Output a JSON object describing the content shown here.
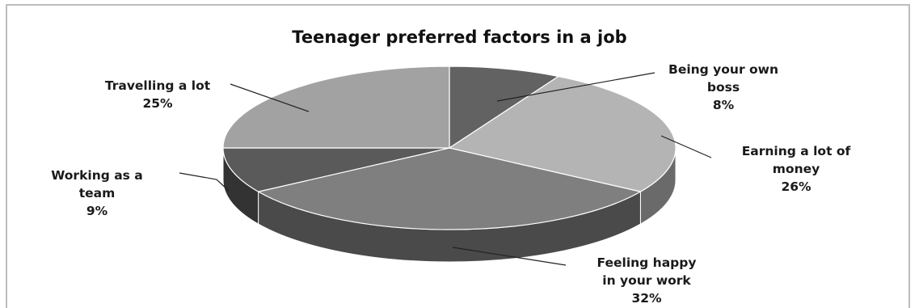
{
  "chart_data": {
    "type": "pie",
    "style": "3d",
    "title": "Teenager preferred factors in a job",
    "slices": [
      {
        "label_lines": [
          "Being your own",
          "boss"
        ],
        "percent_label": "8%",
        "value": 8,
        "color": "#626262",
        "side": "#3a3a3a"
      },
      {
        "label_lines": [
          "Earning a lot of",
          "money"
        ],
        "percent_label": "26%",
        "value": 26,
        "color": "#b4b4b4",
        "side": "#6a6a6a"
      },
      {
        "label_lines": [
          "Feeling happy",
          "in your work"
        ],
        "percent_label": "32%",
        "value": 32,
        "color": "#7f7f7f",
        "side": "#4a4a4a"
      },
      {
        "label_lines": [
          "Working as a",
          "team"
        ],
        "percent_label": "9%",
        "value": 9,
        "color": "#5a5a5a",
        "side": "#333333"
      },
      {
        "label_lines": [
          "Travelling a lot"
        ],
        "percent_label": "25%",
        "value": 25,
        "color": "#a2a2a2",
        "side": "#5e5e5e"
      }
    ],
    "legend": "none",
    "data_labels": "outside-with-leader-lines"
  }
}
